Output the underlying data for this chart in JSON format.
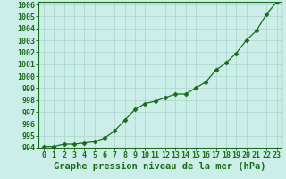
{
  "x": [
    0,
    1,
    2,
    3,
    4,
    5,
    6,
    7,
    8,
    9,
    10,
    11,
    12,
    13,
    14,
    15,
    16,
    17,
    18,
    19,
    20,
    21,
    22,
    23
  ],
  "y": [
    994.1,
    994.1,
    994.3,
    994.3,
    994.4,
    994.5,
    994.8,
    995.4,
    996.3,
    997.2,
    997.7,
    997.9,
    998.2,
    998.5,
    998.5,
    999.0,
    999.5,
    1000.5,
    1001.1,
    1001.9,
    1003.0,
    1003.8,
    1005.2,
    1006.2
  ],
  "ylim": [
    994,
    1006
  ],
  "yticks": [
    994,
    995,
    996,
    997,
    998,
    999,
    1000,
    1001,
    1002,
    1003,
    1004,
    1005,
    1006
  ],
  "xlim": [
    -0.5,
    23.5
  ],
  "xticks": [
    0,
    1,
    2,
    3,
    4,
    5,
    6,
    7,
    8,
    9,
    10,
    11,
    12,
    13,
    14,
    15,
    16,
    17,
    18,
    19,
    20,
    21,
    22,
    23
  ],
  "line_color": "#1a6b1a",
  "marker": "D",
  "marker_size": 2.5,
  "bg_color": "#cceee8",
  "grid_color": "#aad4cc",
  "xlabel": "Graphe pression niveau de la mer (hPa)",
  "xlabel_fontsize": 7.5,
  "tick_fontsize": 6.0,
  "label_color": "#1a6b1a",
  "linewidth": 0.9
}
